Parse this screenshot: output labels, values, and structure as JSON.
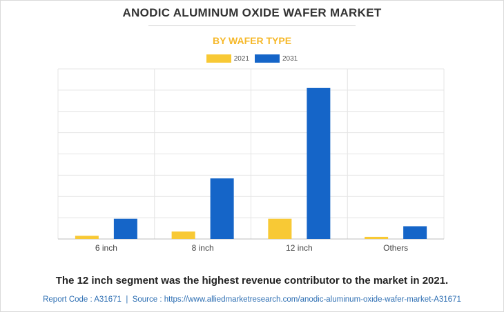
{
  "title": "ANODIC ALUMINUM OXIDE WAFER MARKET",
  "subtitle": "BY WAFER TYPE",
  "headline": "The 12 inch segment was the highest revenue contributor to the market in 2021.",
  "footer": {
    "report_code": "Report Code : A31671",
    "separator": "|",
    "source": "Source : https://www.alliedmarketresearch.com/anodic-aluminum-oxide-wafer-market-A31671"
  },
  "colors": {
    "y2021": "#f8c935",
    "y2031": "#1565c8",
    "grid": "#e4e4e4",
    "axis": "#bdbdbd"
  },
  "chart_data": {
    "type": "bar",
    "categories": [
      "6 inch",
      "8 inch",
      "12 inch",
      "Others"
    ],
    "series": [
      {
        "name": "2021",
        "values": [
          0.3,
          0.7,
          1.9,
          0.2
        ]
      },
      {
        "name": "2031",
        "values": [
          1.9,
          5.7,
          14.2,
          1.2
        ]
      }
    ],
    "ylim": [
      0,
      16
    ],
    "y_gridlines": 8,
    "grid": true,
    "legend_position": "top-center",
    "xlabel": "",
    "ylabel": ""
  }
}
